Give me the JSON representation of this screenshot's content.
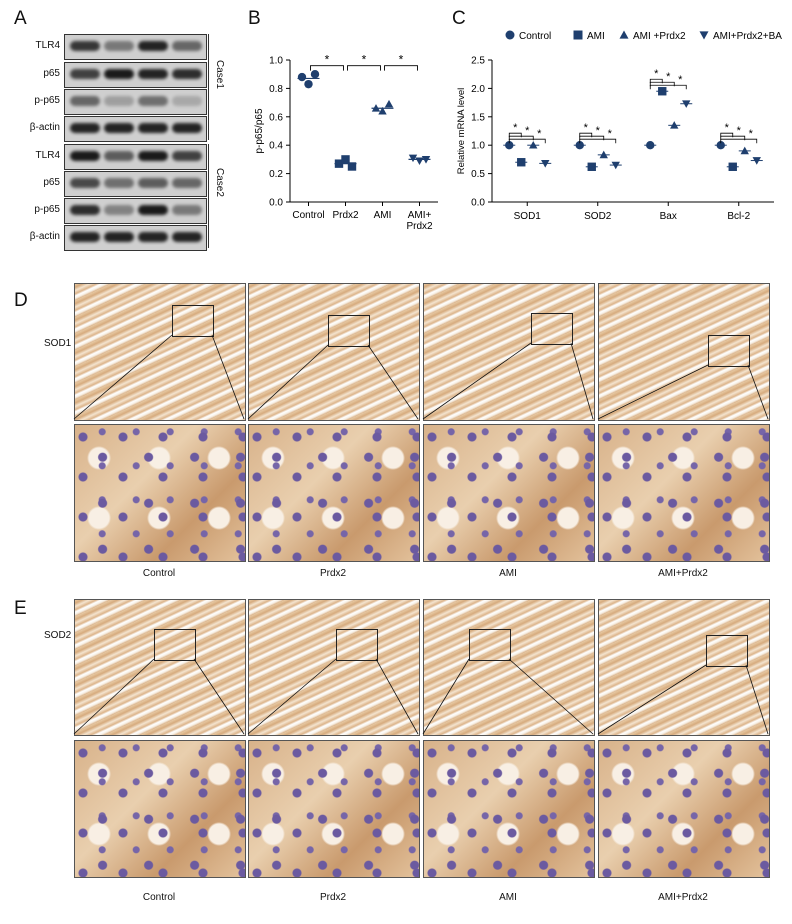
{
  "panels": {
    "a": "A",
    "b": "B",
    "c": "C",
    "d": "D",
    "e": "E"
  },
  "blot": {
    "rows": [
      {
        "label": "TLR4",
        "intensity": [
          0.8,
          0.45,
          0.9,
          0.55
        ]
      },
      {
        "label": "p65",
        "intensity": [
          0.75,
          0.95,
          0.9,
          0.85
        ]
      },
      {
        "label": "p-p65",
        "intensity": [
          0.55,
          0.25,
          0.5,
          0.2
        ]
      },
      {
        "label": "β-actin",
        "intensity": [
          0.9,
          0.9,
          0.9,
          0.9
        ]
      },
      {
        "label": "TLR4",
        "intensity": [
          0.95,
          0.6,
          0.95,
          0.75
        ]
      },
      {
        "label": "p65",
        "intensity": [
          0.7,
          0.5,
          0.6,
          0.55
        ]
      },
      {
        "label": "p-p65",
        "intensity": [
          0.85,
          0.4,
          0.95,
          0.45
        ]
      },
      {
        "label": "β-actin",
        "intensity": [
          0.9,
          0.9,
          0.9,
          0.9
        ]
      }
    ],
    "case1": "Case1",
    "case2": "Case2"
  },
  "chart_data": [
    {
      "type": "scatter",
      "panel": "B",
      "ylabel": "p-p65/p65",
      "ylim": [
        0,
        1.0
      ],
      "yticks": [
        "0.0",
        "0.2",
        "0.4",
        "0.6",
        "0.8",
        "1.0"
      ],
      "categories": [
        "Control",
        "Prdx2",
        "AMI",
        "AMI+\nPrdx2"
      ],
      "category_lines": [
        [
          "Control"
        ],
        [
          "Prdx2"
        ],
        [
          "AMI"
        ],
        [
          "AMI+",
          "Prdx2"
        ]
      ],
      "points": [
        {
          "values": [
            0.88,
            0.83,
            0.9
          ],
          "mean": 0.87,
          "marker": "circle"
        },
        {
          "values": [
            0.27,
            0.3,
            0.25
          ],
          "mean": 0.27,
          "marker": "square"
        },
        {
          "values": [
            0.66,
            0.64,
            0.69
          ],
          "mean": 0.66,
          "marker": "triangle"
        },
        {
          "values": [
            0.31,
            0.29,
            0.3
          ],
          "mean": 0.3,
          "marker": "triangle-down"
        }
      ],
      "significance": [
        "*",
        "*",
        "*"
      ],
      "color": "#1f3f6e"
    },
    {
      "type": "scatter",
      "panel": "C",
      "ylabel": "Relative mRNA level",
      "ylim": [
        0,
        2.5
      ],
      "yticks": [
        "0.0",
        "0.5",
        "1.0",
        "1.5",
        "2.0",
        "2.5"
      ],
      "categories": [
        "SOD1",
        "SOD2",
        "Bax",
        "Bcl-2"
      ],
      "series": [
        {
          "name": "Control",
          "marker": "circle",
          "values": [
            1.0,
            1.0,
            1.0,
            1.0
          ]
        },
        {
          "name": "AMI",
          "marker": "square",
          "values": [
            0.7,
            0.62,
            1.95,
            0.62
          ]
        },
        {
          "name": "AMI +Prdx2",
          "marker": "triangle",
          "values": [
            1.0,
            0.83,
            1.35,
            0.9
          ]
        },
        {
          "name": "AMI+Prdx2+BA",
          "marker": "triangle-down",
          "values": [
            0.68,
            0.65,
            1.73,
            0.73
          ]
        }
      ],
      "significance": [
        "*",
        "*",
        "*"
      ],
      "legend": "top",
      "color": "#1f3f6e"
    }
  ],
  "ihc": {
    "row_d": "SOD1",
    "row_e": "SOD2",
    "captions": [
      "Control",
      "Prdx2",
      "AMI",
      "AMI+Prdx2"
    ]
  }
}
